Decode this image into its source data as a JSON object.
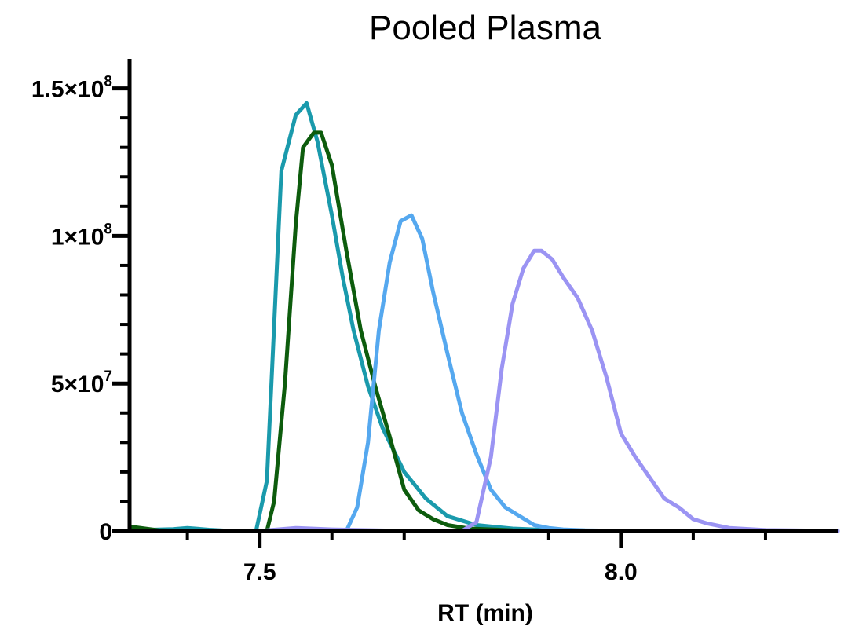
{
  "chart_data": {
    "type": "line",
    "title": "Pooled Plasma",
    "xlabel": "RT (min)",
    "ylabel": "",
    "xlim": [
      7.32,
      8.3
    ],
    "ylim": [
      0,
      160000000
    ],
    "x_ticks": [
      {
        "value": 7.5,
        "label": "7.5"
      },
      {
        "value": 8.0,
        "label": "8.0"
      }
    ],
    "x_minor_ticks": [
      7.4,
      7.6,
      7.7,
      7.9,
      8.1,
      8.2
    ],
    "y_ticks": [
      {
        "value": 0,
        "base": "0",
        "exp": ""
      },
      {
        "value": 50000000,
        "base": "5×10",
        "exp": "7"
      },
      {
        "value": 100000000,
        "base": "1×10",
        "exp": "8"
      },
      {
        "value": 150000000,
        "base": "1.5×10",
        "exp": "8"
      }
    ],
    "y_minor_step": 10000000,
    "series": [
      {
        "name": "series-1-teal",
        "color": "#1a9aac",
        "x": [
          7.32,
          7.35,
          7.38,
          7.4,
          7.43,
          7.46,
          7.48,
          7.495,
          7.51,
          7.53,
          7.55,
          7.565,
          7.58,
          7.6,
          7.615,
          7.63,
          7.65,
          7.67,
          7.7,
          7.73,
          7.76,
          7.8,
          7.85,
          7.9,
          8.0,
          8.3
        ],
        "y": [
          1000000,
          400000,
          600000,
          1000000,
          400000,
          0,
          0,
          0,
          17000000,
          122000000,
          141000000,
          145000000,
          132000000,
          107000000,
          86000000,
          68000000,
          49000000,
          35000000,
          20000000,
          11000000,
          5000000,
          2000000,
          800000,
          300000,
          0,
          0
        ]
      },
      {
        "name": "series-2-green",
        "color": "#0d5c0d",
        "x": [
          7.32,
          7.36,
          7.4,
          7.44,
          7.48,
          7.5,
          7.51,
          7.52,
          7.535,
          7.55,
          7.56,
          7.575,
          7.585,
          7.6,
          7.62,
          7.64,
          7.66,
          7.68,
          7.7,
          7.72,
          7.74,
          7.76,
          7.79,
          7.85,
          7.9,
          8.0,
          8.3
        ],
        "y": [
          1500000,
          200000,
          0,
          0,
          0,
          0,
          0,
          10000000,
          50000000,
          104000000,
          130000000,
          135000000,
          135000000,
          124000000,
          95000000,
          68000000,
          49000000,
          32000000,
          14000000,
          7000000,
          4000000,
          2000000,
          800000,
          200000,
          0,
          0,
          0
        ]
      },
      {
        "name": "series-3-blue",
        "color": "#55a8ef",
        "x": [
          7.32,
          7.5,
          7.62,
          7.635,
          7.65,
          7.665,
          7.68,
          7.695,
          7.71,
          7.725,
          7.74,
          7.76,
          7.78,
          7.8,
          7.82,
          7.84,
          7.86,
          7.88,
          7.9,
          7.92,
          7.95,
          8.0,
          8.1,
          8.3
        ],
        "y": [
          0,
          0,
          0,
          8000000,
          30000000,
          68000000,
          91000000,
          105000000,
          107000000,
          99000000,
          81000000,
          60000000,
          40000000,
          26000000,
          14000000,
          8000000,
          5000000,
          2000000,
          1000000,
          500000,
          200000,
          0,
          0,
          0
        ]
      },
      {
        "name": "series-4-violet",
        "color": "#9b94f3",
        "x": [
          7.32,
          7.5,
          7.55,
          7.6,
          7.7,
          7.75,
          7.78,
          7.8,
          7.82,
          7.835,
          7.85,
          7.865,
          7.88,
          7.89,
          7.905,
          7.92,
          7.94,
          7.96,
          7.98,
          8.0,
          8.02,
          8.04,
          8.06,
          8.08,
          8.1,
          8.12,
          8.15,
          8.2,
          8.3
        ],
        "y": [
          0,
          0,
          1000000,
          500000,
          0,
          0,
          0,
          3000000,
          25000000,
          55000000,
          77000000,
          89000000,
          95000000,
          95000000,
          92000000,
          86000000,
          79000000,
          68000000,
          52000000,
          33000000,
          25000000,
          18000000,
          11000000,
          8000000,
          4000000,
          2500000,
          1000000,
          300000,
          0
        ]
      }
    ]
  }
}
